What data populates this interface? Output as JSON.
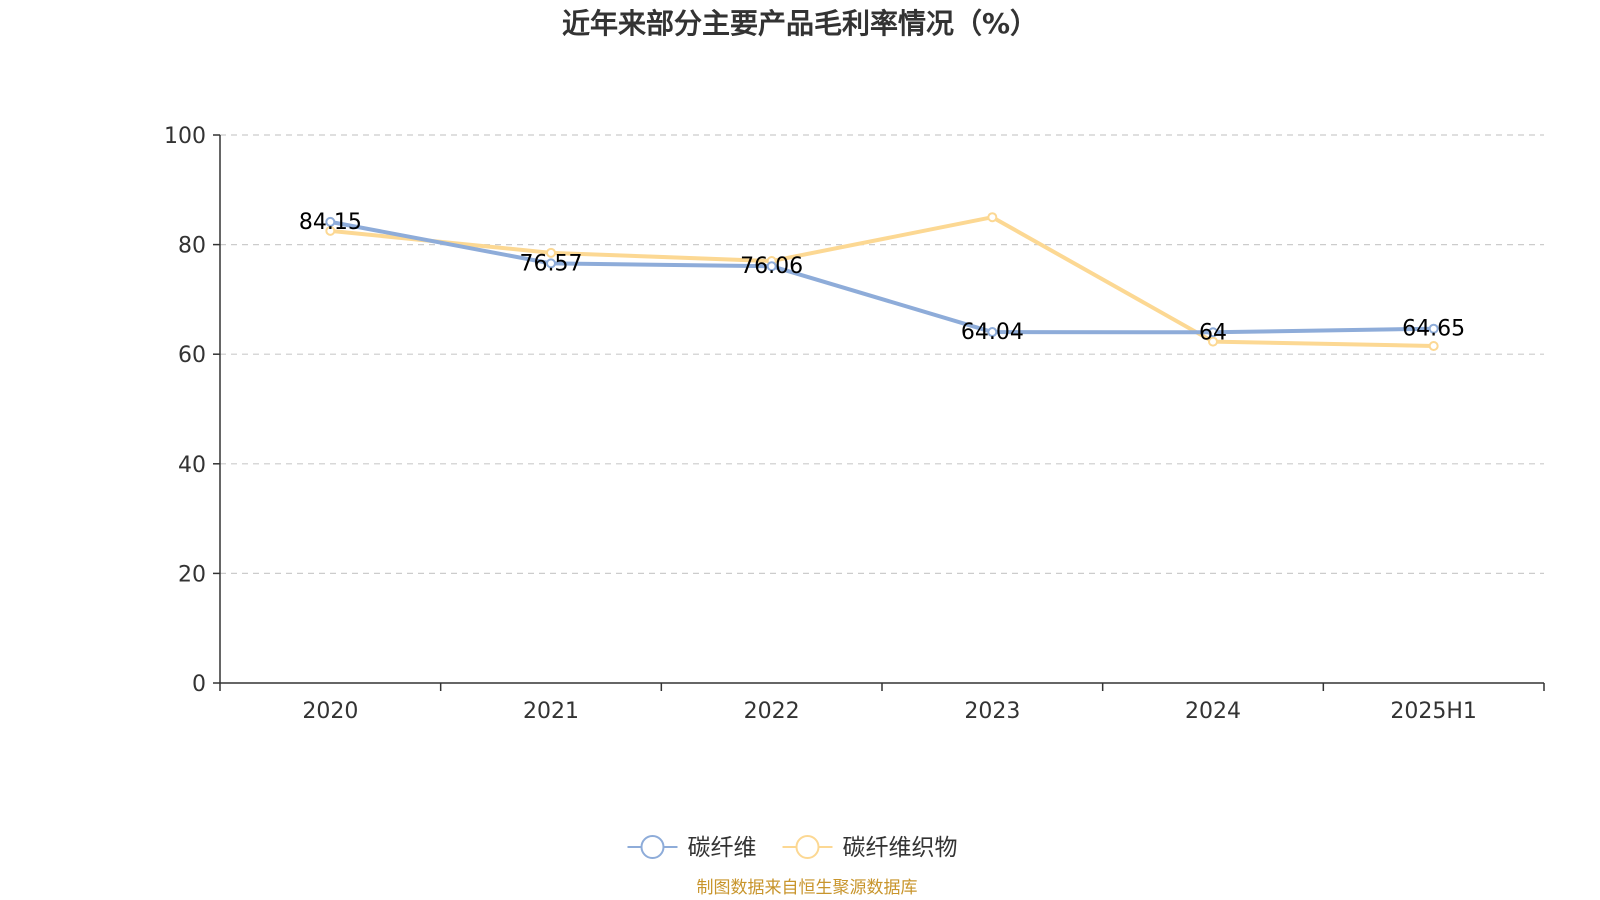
{
  "chart_data": {
    "type": "line",
    "title": "近年来部分主要产品毛利率情况（%）",
    "categories": [
      "2020",
      "2021",
      "2022",
      "2023",
      "2024",
      "2025H1"
    ],
    "ylim": [
      0,
      100
    ],
    "yticks": [
      0,
      20,
      40,
      60,
      80,
      100
    ],
    "grid": true,
    "legend_position": "bottom",
    "series": [
      {
        "name": "碳纤维",
        "color": "#8eacd9",
        "values": [
          84.15,
          76.57,
          76.06,
          64.04,
          64,
          64.65
        ],
        "labels": [
          "84.15",
          "76.57",
          "76.06",
          "64.04",
          "64",
          "64.65"
        ]
      },
      {
        "name": "碳纤维织物",
        "color": "#fcd893",
        "values": [
          82.5,
          78.5,
          77.0,
          85.0,
          62.3,
          61.5
        ]
      }
    ]
  },
  "source": "制图数据来自恒生聚源数据库"
}
